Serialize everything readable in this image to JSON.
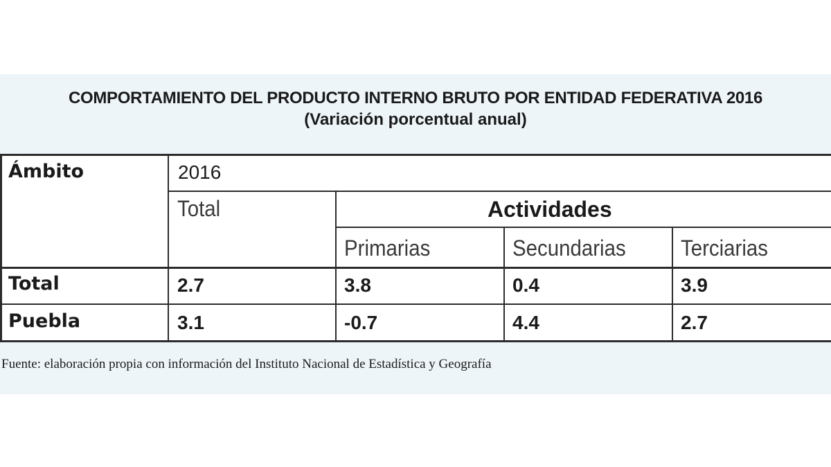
{
  "title": "COMPORTAMIENTO DEL PRODUCTO INTERNO BRUTO POR ENTIDAD FEDERATIVA 2016",
  "subtitle": "(Variación porcentual anual)",
  "table": {
    "ambito_label": "Ámbito",
    "year_label": "2016",
    "total_label": "Total",
    "actividades_label": "Actividades",
    "columns": [
      "Primarias",
      "Secundarias",
      "Terciarias"
    ],
    "rows": [
      {
        "label": "Total",
        "values": [
          "2.7",
          "3.8",
          "0.4",
          "3.9"
        ]
      },
      {
        "label": "Puebla",
        "values": [
          "3.1",
          "-0.7",
          "4.4",
          "2.7"
        ]
      }
    ]
  },
  "source": "Fuente: elaboración propia con información del Instituto Nacional de Estadística y Geografía",
  "chart_data": {
    "type": "table",
    "title": "COMPORTAMIENTO DEL PRODUCTO INTERNO BRUTO POR ENTIDAD FEDERATIVA 2016",
    "subtitle": "(Variación porcentual anual)",
    "columns": [
      "Ámbito",
      "Total",
      "Primarias",
      "Secundarias",
      "Terciarias"
    ],
    "rows": [
      [
        "Total",
        2.7,
        3.8,
        0.4,
        3.9
      ],
      [
        "Puebla",
        3.1,
        -0.7,
        4.4,
        2.7
      ]
    ]
  }
}
